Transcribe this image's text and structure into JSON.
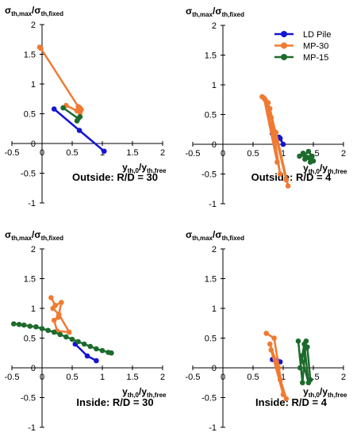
{
  "chart_data": [
    {
      "type": "line",
      "title": "Outside: R/D = 30",
      "xlabel": {
        "main": "y",
        "sub1": "th,0",
        "mid": "/y",
        "sub2": "th,free"
      },
      "ylabel": {
        "main": "σ",
        "sub1": "th,max",
        "mid": "/σ",
        "sub2": "th,fixed"
      },
      "xlim": [
        -0.5,
        2
      ],
      "ylim": [
        -1,
        2
      ],
      "xticks": [
        "-0.5",
        "0",
        "0.5",
        "1",
        "1.5",
        "2"
      ],
      "yticks": [
        "-1",
        "-0.5",
        "0",
        "0.5",
        "1",
        "1.5",
        "2"
      ],
      "series": [
        {
          "name": "LD Pile",
          "color": "#1414d2",
          "x": [
            0.2,
            0.62,
            1.03
          ],
          "y": [
            0.58,
            0.22,
            -0.13
          ]
        },
        {
          "name": "MP-30",
          "color": "#f07a32",
          "x": [
            -0.04,
            -0.02,
            0.6,
            0.65,
            0.63,
            0.4,
            0.58,
            0.63
          ],
          "y": [
            1.62,
            1.6,
            0.62,
            0.57,
            0.52,
            0.64,
            0.55,
            0.6
          ]
        },
        {
          "name": "MP-15",
          "color": "#1c6b2c",
          "x": [
            0.35,
            0.6,
            0.63,
            0.58
          ],
          "y": [
            0.6,
            0.42,
            0.45,
            0.38
          ]
        }
      ]
    },
    {
      "type": "line",
      "title": "Outside: R/D = 4",
      "xlabel": {
        "main": "y",
        "sub1": "th,0",
        "mid": "/y",
        "sub2": "th,free"
      },
      "ylabel": {
        "main": "σ",
        "sub1": "th,max",
        "mid": "/σ",
        "sub2": "th,fixed"
      },
      "xlim": [
        -0.5,
        2
      ],
      "ylim": [
        -1,
        2
      ],
      "xticks": [
        "-0.5",
        "0",
        "0.5",
        "1",
        "1.5",
        "2"
      ],
      "yticks": [
        "-1",
        "-0.5",
        "0",
        "0.5",
        "1",
        "1.5",
        "2"
      ],
      "series": [
        {
          "name": "LD Pile",
          "color": "#1414d2",
          "x": [
            0.82,
            0.95,
            1.0,
            0.93
          ],
          "y": [
            0.18,
            0.1,
            0.0,
            0.12
          ]
        },
        {
          "name": "MP-30",
          "color": "#f07a32",
          "x": [
            0.65,
            0.75,
            1.05,
            0.8,
            0.95,
            0.7,
            0.88,
            1.08,
            0.78,
            0.9,
            0.68
          ],
          "y": [
            0.8,
            0.7,
            -0.6,
            0.45,
            -0.5,
            0.75,
            0.2,
            -0.7,
            0.6,
            -0.3,
            0.78
          ]
        },
        {
          "name": "MP-15",
          "color": "#1c6b2c",
          "x": [
            1.27,
            1.33,
            1.36,
            1.4,
            1.45,
            1.5,
            1.35,
            1.42,
            1.48
          ],
          "y": [
            -0.2,
            -0.15,
            -0.25,
            -0.22,
            -0.3,
            -0.28,
            -0.18,
            -0.12,
            -0.2
          ]
        }
      ]
    },
    {
      "type": "line",
      "title": "Inside: R/D = 30",
      "xlabel": {
        "main": "y",
        "sub1": "th,0",
        "mid": "/y",
        "sub2": "th,free"
      },
      "ylabel": {
        "main": "σ",
        "sub1": "th,max",
        "mid": "/σ",
        "sub2": "th,fixed"
      },
      "xlim": [
        -0.5,
        2
      ],
      "ylim": [
        -1,
        2
      ],
      "xticks": [
        "-0.5",
        "0",
        "0.5",
        "1",
        "1.5",
        "2"
      ],
      "yticks": [
        "-1",
        "-0.5",
        "0",
        "0.5",
        "1",
        "1.5",
        "2"
      ],
      "series": [
        {
          "name": "LD Pile",
          "color": "#1414d2",
          "x": [
            0.55,
            0.75,
            0.9
          ],
          "y": [
            0.4,
            0.2,
            0.12
          ]
        },
        {
          "name": "MP-30",
          "color": "#f07a32",
          "x": [
            0.15,
            0.22,
            0.32,
            0.27,
            0.2,
            0.25,
            0.45,
            0.28,
            0.18
          ],
          "y": [
            1.18,
            1.05,
            1.1,
            0.85,
            0.8,
            0.62,
            0.6,
            0.9,
            1.0
          ]
        },
        {
          "name": "MP-15",
          "color": "#1c6b2c",
          "x": [
            -0.47,
            -0.38,
            -0.3,
            -0.2,
            -0.1,
            0.0,
            0.1,
            0.2,
            0.3,
            0.4,
            0.5,
            0.6,
            0.7,
            0.8,
            0.9,
            1.0,
            1.1,
            1.15
          ],
          "y": [
            0.74,
            0.73,
            0.72,
            0.7,
            0.69,
            0.66,
            0.63,
            0.6,
            0.56,
            0.52,
            0.48,
            0.44,
            0.4,
            0.36,
            0.32,
            0.29,
            0.26,
            0.25
          ]
        }
      ]
    },
    {
      "type": "line",
      "title": "Inside: R/D = 4",
      "xlabel": {
        "main": "y",
        "sub1": "th,0",
        "mid": "/y",
        "sub2": "th,free"
      },
      "ylabel": {
        "main": "σ",
        "sub1": "th,max",
        "mid": "/σ",
        "sub2": "th,fixed"
      },
      "xlim": [
        -0.5,
        2
      ],
      "ylim": [
        -1,
        2
      ],
      "xticks": [
        "-0.5",
        "0",
        "0.5",
        "1",
        "1.5",
        "2"
      ],
      "yticks": [
        "-1",
        "-0.5",
        "0",
        "0.5",
        "1",
        "1.5",
        "2"
      ],
      "series": [
        {
          "name": "LD Pile",
          "color": "#1414d2",
          "x": [
            0.82,
            0.9,
            0.95
          ],
          "y": [
            0.14,
            0.12,
            0.1
          ]
        },
        {
          "name": "MP-30",
          "color": "#f07a32",
          "x": [
            0.72,
            0.85,
            1.0,
            0.8,
            0.95,
            1.05,
            0.78,
            0.92
          ],
          "y": [
            0.58,
            0.5,
            -0.45,
            0.3,
            -0.2,
            -0.52,
            0.4,
            0.0
          ]
        },
        {
          "name": "MP-15",
          "color": "#1c6b2c",
          "x": [
            1.25,
            1.32,
            1.38,
            1.28,
            1.35,
            1.42,
            1.3,
            1.4,
            1.45
          ],
          "y": [
            0.45,
            -0.25,
            0.45,
            0.0,
            0.4,
            -0.25,
            0.2,
            0.35,
            -0.2
          ]
        }
      ]
    }
  ],
  "legend": {
    "position": "top-right",
    "items": [
      {
        "label": "LD Pile",
        "color": "#1414d2"
      },
      {
        "label": "MP-30",
        "color": "#f07a32"
      },
      {
        "label": "MP-15",
        "color": "#1c6b2c"
      }
    ]
  }
}
